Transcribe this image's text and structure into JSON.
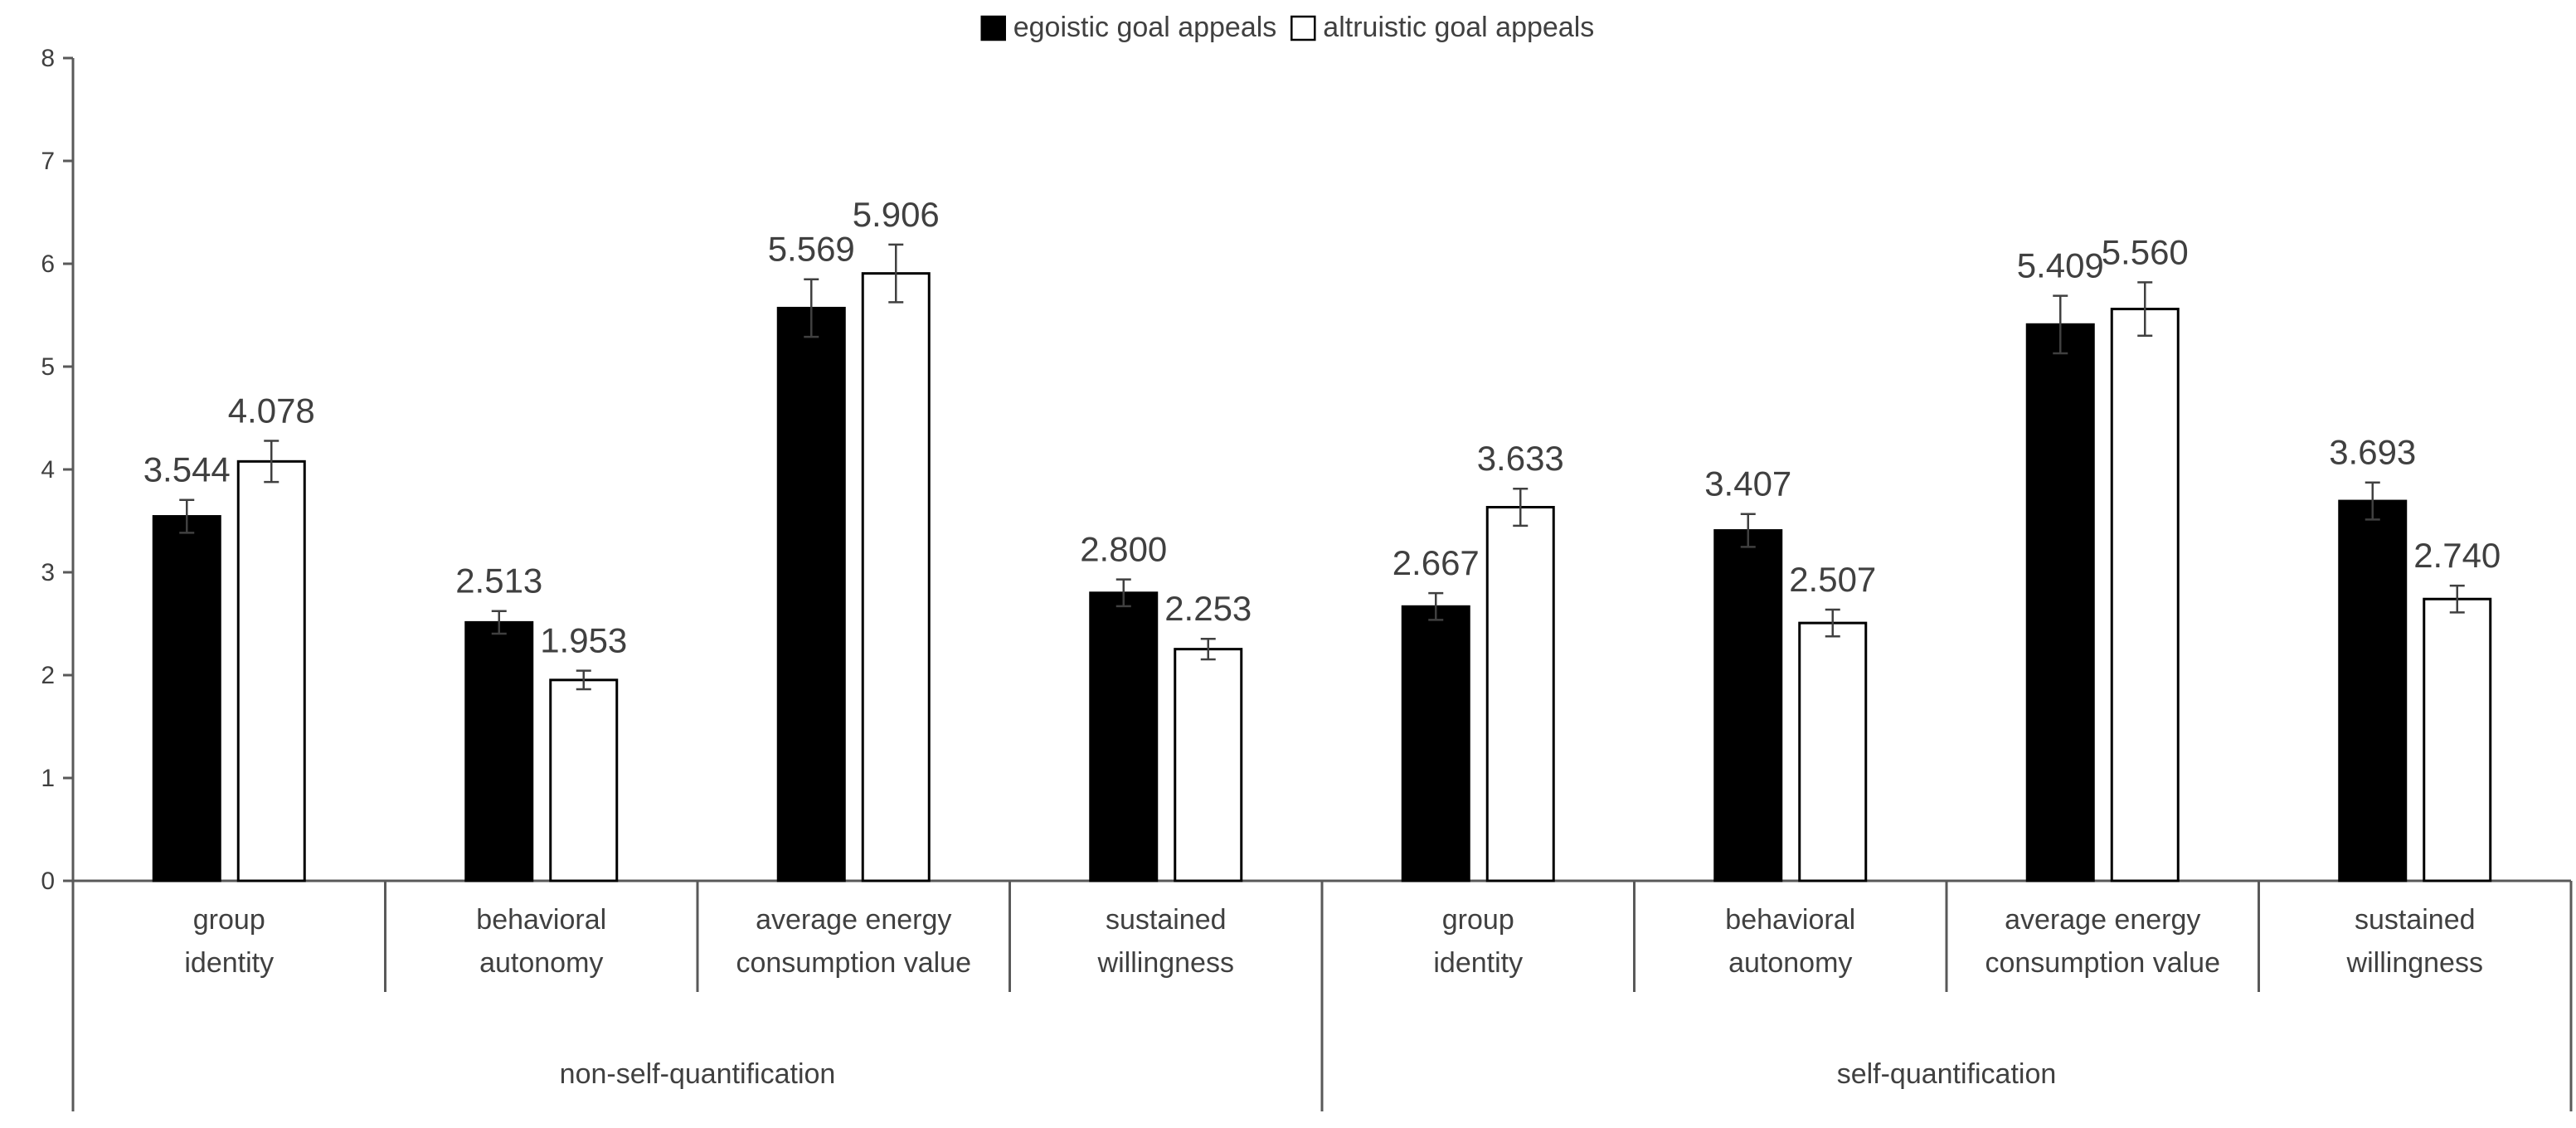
{
  "chart_data": {
    "type": "bar",
    "ylim": [
      0,
      8
    ],
    "yticks": [
      "0",
      "1",
      "2",
      "3",
      "4",
      "5",
      "6",
      "7",
      "8"
    ],
    "grid": false,
    "legend_position": "top",
    "groups": [
      {
        "label": "non-self-quantification",
        "categories": [
          [
            "group",
            "identity"
          ],
          [
            "behavioral",
            "autonomy"
          ],
          [
            "average energy",
            "consumption value"
          ],
          [
            "sustained",
            "willingness"
          ]
        ]
      },
      {
        "label": "self-quantification",
        "categories": [
          [
            "group",
            "identity"
          ],
          [
            "behavioral",
            "autonomy"
          ],
          [
            "average energy",
            "consumption value"
          ],
          [
            "sustained",
            "willingness"
          ]
        ]
      }
    ],
    "series": [
      {
        "name": "egoistic goal appeals",
        "color": "#000000",
        "values": [
          3.544,
          2.513,
          5.569,
          2.8,
          2.667,
          3.407,
          5.409,
          3.693
        ],
        "labels": [
          "3.544",
          "2.513",
          "5.569",
          "2.800",
          "2.667",
          "3.407",
          "5.409",
          "3.693"
        ],
        "errors": [
          0.16,
          0.11,
          0.28,
          0.13,
          0.13,
          0.16,
          0.28,
          0.18
        ]
      },
      {
        "name": "altruistic goal appeals",
        "color": "#ffffff",
        "values": [
          4.078,
          1.953,
          5.906,
          2.253,
          3.633,
          2.507,
          5.56,
          2.74
        ],
        "labels": [
          "4.078",
          "1.953",
          "5.906",
          "2.253",
          "3.633",
          "2.507",
          "5.560",
          "2.740"
        ],
        "errors": [
          0.2,
          0.09,
          0.28,
          0.1,
          0.18,
          0.13,
          0.26,
          0.13
        ]
      }
    ]
  }
}
